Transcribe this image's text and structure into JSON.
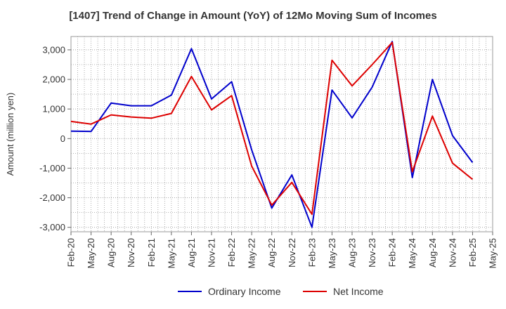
{
  "chart_data": {
    "type": "line",
    "title": "[1407]  Trend of Change in Amount (YoY) of 12Mo Moving Sum of Incomes",
    "xlabel": "",
    "ylabel": "Amount (million yen)",
    "ylim": [
      -3150,
      3450
    ],
    "yticks": [
      3000,
      2000,
      1000,
      0,
      -1000,
      -2000,
      -3000
    ],
    "ytick_labels": [
      "3,000",
      "2,000",
      "1,000",
      "0",
      "-1,000",
      "-2,000",
      "-3,000"
    ],
    "x": [
      "Feb-20",
      "May-20",
      "Aug-20",
      "Nov-20",
      "Feb-21",
      "May-21",
      "Aug-21",
      "Nov-21",
      "Feb-22",
      "May-22",
      "Aug-22",
      "Nov-22",
      "Feb-23",
      "May-23",
      "Aug-23",
      "Nov-23",
      "Feb-24",
      "May-24",
      "Aug-24",
      "Nov-24",
      "Feb-25",
      "May-25"
    ],
    "grid": true,
    "legend_position": "bottom",
    "series": [
      {
        "name": "Ordinary Income",
        "color": "#0000cc",
        "values": [
          250,
          240,
          1200,
          1110,
          1110,
          1470,
          3040,
          1340,
          1920,
          -380,
          -2350,
          -1230,
          -3000,
          1640,
          700,
          1740,
          3280,
          -1320,
          2000,
          100,
          -810,
          null
        ]
      },
      {
        "name": "Net Income",
        "color": "#dd0000",
        "values": [
          580,
          490,
          800,
          730,
          690,
          850,
          2100,
          970,
          1450,
          -930,
          -2250,
          -1480,
          -2560,
          2650,
          1780,
          2500,
          3250,
          -1120,
          760,
          -830,
          -1380,
          null
        ]
      }
    ]
  }
}
